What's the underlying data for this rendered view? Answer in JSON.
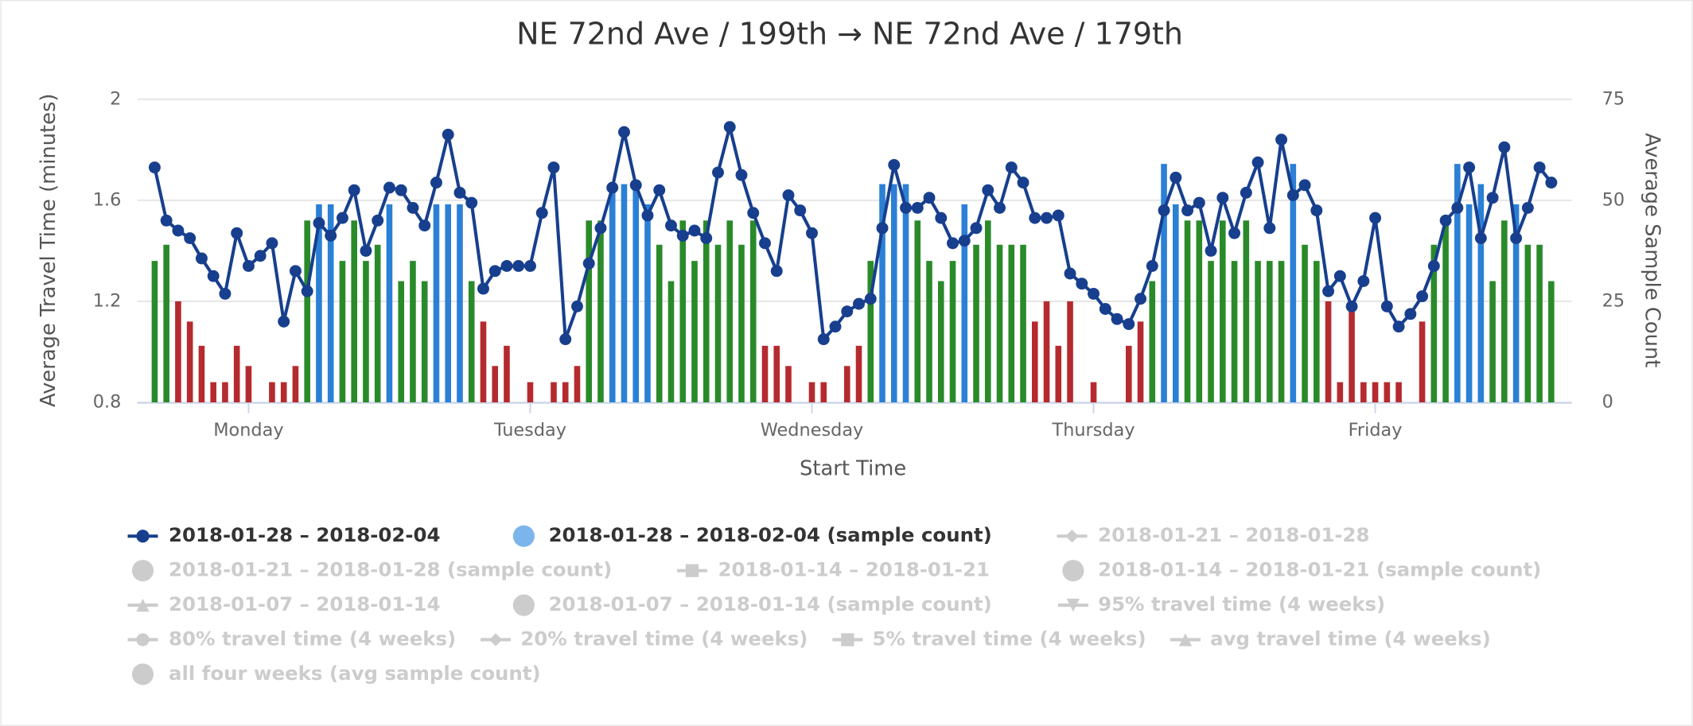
{
  "chart_data": {
    "type": "line",
    "title": "NE 72nd Ave / 199th → NE 72nd Ave / 179th",
    "x_label": "Start Time",
    "y_label": "Average Travel Time (minutes)",
    "y2_label": "Average Sample Count",
    "categories": [
      null,
      null,
      null,
      null,
      null,
      null,
      null,
      null,
      "Monday",
      null,
      null,
      null,
      null,
      null,
      null,
      null,
      null,
      null,
      null,
      null,
      null,
      null,
      null,
      null,
      null,
      null,
      null,
      null,
      null,
      null,
      null,
      null,
      "Tuesday",
      null,
      null,
      null,
      null,
      null,
      null,
      null,
      null,
      null,
      null,
      null,
      null,
      null,
      null,
      null,
      null,
      null,
      null,
      null,
      null,
      null,
      null,
      null,
      "Wednesday",
      null,
      null,
      null,
      null,
      null,
      null,
      null,
      null,
      null,
      null,
      null,
      null,
      null,
      null,
      null,
      null,
      null,
      null,
      null,
      null,
      null,
      null,
      null,
      "Thursday",
      null,
      null,
      null,
      null,
      null,
      null,
      null,
      null,
      null,
      null,
      null,
      null,
      null,
      null,
      null,
      null,
      null,
      null,
      null,
      null,
      null,
      null,
      null,
      "Friday",
      null,
      null,
      null,
      null,
      null,
      null,
      null,
      null,
      null,
      null,
      null,
      null,
      null,
      null,
      null
    ],
    "ylim": [
      0.8,
      2
    ],
    "yticks": [
      0.8,
      1.2,
      1.6,
      2
    ],
    "y2lim": [
      0,
      75
    ],
    "y2ticks": [
      0,
      25,
      50,
      75
    ],
    "grid": true,
    "legend": "bottom",
    "series": [
      {
        "name": "2018-01-28 – 2018-02-04",
        "type": "line",
        "symbol": "circle",
        "visible": true,
        "color": "#173f8e",
        "values": [
          1.73,
          1.52,
          1.48,
          1.45,
          1.37,
          1.3,
          1.23,
          1.47,
          1.34,
          1.38,
          1.43,
          1.12,
          1.32,
          1.24,
          1.51,
          1.46,
          1.53,
          1.64,
          1.4,
          1.52,
          1.65,
          1.64,
          1.57,
          1.5,
          1.67,
          1.86,
          1.63,
          1.59,
          1.25,
          1.32,
          1.34,
          1.34,
          1.34,
          1.55,
          1.73,
          1.05,
          1.18,
          1.35,
          1.49,
          1.65,
          1.87,
          1.66,
          1.54,
          1.64,
          1.5,
          1.46,
          1.48,
          1.45,
          1.71,
          1.89,
          1.7,
          1.55,
          1.43,
          1.32,
          1.62,
          1.56,
          1.47,
          1.05,
          1.1,
          1.16,
          1.19,
          1.21,
          1.49,
          1.74,
          1.57,
          1.57,
          1.61,
          1.53,
          1.43,
          1.44,
          1.49,
          1.64,
          1.57,
          1.73,
          1.67,
          1.53,
          1.53,
          1.54,
          1.31,
          1.27,
          1.23,
          1.17,
          1.13,
          1.11,
          1.21,
          1.34,
          1.56,
          1.69,
          1.56,
          1.59,
          1.4,
          1.61,
          1.47,
          1.63,
          1.75,
          1.49,
          1.84,
          1.62,
          1.66,
          1.56,
          1.24,
          1.3,
          1.18,
          1.28,
          1.53,
          1.18,
          1.1,
          1.15,
          1.22,
          1.34,
          1.52,
          1.57,
          1.73,
          1.45,
          1.61,
          1.81,
          1.45,
          1.57,
          1.73,
          1.67
        ]
      },
      {
        "name": "2018-01-28 – 2018-02-04 (sample count)",
        "type": "column",
        "symbol": "circle",
        "visible": true,
        "color": "#7cb5ec",
        "axis": "y2",
        "values": [
          35,
          39,
          25,
          20,
          14,
          5,
          5,
          14,
          9,
          null,
          5,
          5,
          9,
          45,
          49,
          49,
          35,
          45,
          35,
          39,
          49,
          30,
          35,
          30,
          49,
          49,
          49,
          30,
          20,
          9,
          14,
          null,
          5,
          null,
          5,
          5,
          9,
          45,
          45,
          54,
          54,
          54,
          49,
          39,
          30,
          45,
          35,
          45,
          39,
          45,
          39,
          45,
          14,
          14,
          9,
          null,
          5,
          5,
          null,
          9,
          14,
          35,
          54,
          54,
          54,
          45,
          35,
          30,
          35,
          49,
          39,
          45,
          39,
          39,
          39,
          20,
          25,
          14,
          25,
          null,
          5,
          null,
          null,
          14,
          20,
          30,
          59,
          49,
          45,
          45,
          35,
          45,
          35,
          45,
          35,
          35,
          35,
          59,
          39,
          35,
          25,
          5,
          25,
          5,
          5,
          5,
          5,
          null,
          20,
          39,
          45,
          59,
          49,
          54,
          30,
          45,
          49,
          39,
          39,
          30
        ],
        "colors": [
          "#2a8a2a",
          "#2a8a2a",
          "#b52a2e",
          "#b52a2e",
          "#b52a2e",
          "#b52a2e",
          "#b52a2e",
          "#b52a2e",
          "#b52a2e",
          null,
          "#b52a2e",
          "#b52a2e",
          "#b52a2e",
          "#2a8a2a",
          "#2b80d5",
          "#2b80d5",
          "#2a8a2a",
          "#2a8a2a",
          "#2a8a2a",
          "#2a8a2a",
          "#2b80d5",
          "#2a8a2a",
          "#2a8a2a",
          "#2a8a2a",
          "#2b80d5",
          "#2b80d5",
          "#2b80d5",
          "#2a8a2a",
          "#b52a2e",
          "#b52a2e",
          "#b52a2e",
          null,
          "#b52a2e",
          null,
          "#b52a2e",
          "#b52a2e",
          "#b52a2e",
          "#2a8a2a",
          "#2a8a2a",
          "#2b80d5",
          "#2b80d5",
          "#2b80d5",
          "#2b80d5",
          "#2a8a2a",
          "#2a8a2a",
          "#2a8a2a",
          "#2a8a2a",
          "#2a8a2a",
          "#2a8a2a",
          "#2a8a2a",
          "#2a8a2a",
          "#2a8a2a",
          "#b52a2e",
          "#b52a2e",
          "#b52a2e",
          null,
          "#b52a2e",
          "#b52a2e",
          null,
          "#b52a2e",
          "#b52a2e",
          "#2a8a2a",
          "#2b80d5",
          "#2b80d5",
          "#2b80d5",
          "#2a8a2a",
          "#2a8a2a",
          "#2a8a2a",
          "#2a8a2a",
          "#2b80d5",
          "#2a8a2a",
          "#2a8a2a",
          "#2a8a2a",
          "#2a8a2a",
          "#2a8a2a",
          "#b52a2e",
          "#b52a2e",
          "#b52a2e",
          "#b52a2e",
          null,
          "#b52a2e",
          null,
          null,
          "#b52a2e",
          "#b52a2e",
          "#2a8a2a",
          "#2b80d5",
          "#2b80d5",
          "#2a8a2a",
          "#2a8a2a",
          "#2a8a2a",
          "#2a8a2a",
          "#2a8a2a",
          "#2a8a2a",
          "#2a8a2a",
          "#2a8a2a",
          "#2a8a2a",
          "#2b80d5",
          "#2a8a2a",
          "#2a8a2a",
          "#b52a2e",
          "#b52a2e",
          "#b52a2e",
          "#b52a2e",
          "#b52a2e",
          "#b52a2e",
          "#b52a2e",
          null,
          "#b52a2e",
          "#2a8a2a",
          "#2a8a2a",
          "#2b80d5",
          "#2b80d5",
          "#2b80d5",
          "#2a8a2a",
          "#2a8a2a",
          "#2b80d5",
          "#2a8a2a",
          "#2a8a2a",
          "#2a8a2a"
        ]
      },
      {
        "name": "2018-01-21 – 2018-01-28",
        "type": "line",
        "symbol": "diamond",
        "visible": false,
        "color": "#cccccc"
      },
      {
        "name": "2018-01-21 – 2018-01-28 (sample count)",
        "type": "column",
        "symbol": "circle",
        "visible": false,
        "color": "#cccccc"
      },
      {
        "name": "2018-01-14 – 2018-01-21",
        "type": "line",
        "symbol": "square",
        "visible": false,
        "color": "#cccccc"
      },
      {
        "name": "2018-01-14 – 2018-01-21 (sample count)",
        "type": "column",
        "symbol": "circle",
        "visible": false,
        "color": "#cccccc"
      },
      {
        "name": "2018-01-07 – 2018-01-14",
        "type": "line",
        "symbol": "triangle",
        "visible": false,
        "color": "#cccccc"
      },
      {
        "name": "2018-01-07 – 2018-01-14 (sample count)",
        "type": "column",
        "symbol": "circle",
        "visible": false,
        "color": "#cccccc"
      },
      {
        "name": "95% travel time (4 weeks)",
        "type": "line",
        "symbol": "triangle-down",
        "visible": false,
        "color": "#cccccc"
      },
      {
        "name": "80% travel time (4 weeks)",
        "type": "line",
        "symbol": "circle",
        "visible": false,
        "color": "#cccccc"
      },
      {
        "name": "20% travel time (4 weeks)",
        "type": "line",
        "symbol": "diamond",
        "visible": false,
        "color": "#cccccc"
      },
      {
        "name": "5% travel time (4 weeks)",
        "type": "line",
        "symbol": "square",
        "visible": false,
        "color": "#cccccc"
      },
      {
        "name": "avg travel time (4 weeks)",
        "type": "line",
        "symbol": "triangle",
        "visible": false,
        "color": "#cccccc"
      },
      {
        "name": "all four weeks (avg sample count)",
        "type": "column",
        "symbol": "circle",
        "visible": false,
        "color": "#cccccc"
      }
    ]
  }
}
